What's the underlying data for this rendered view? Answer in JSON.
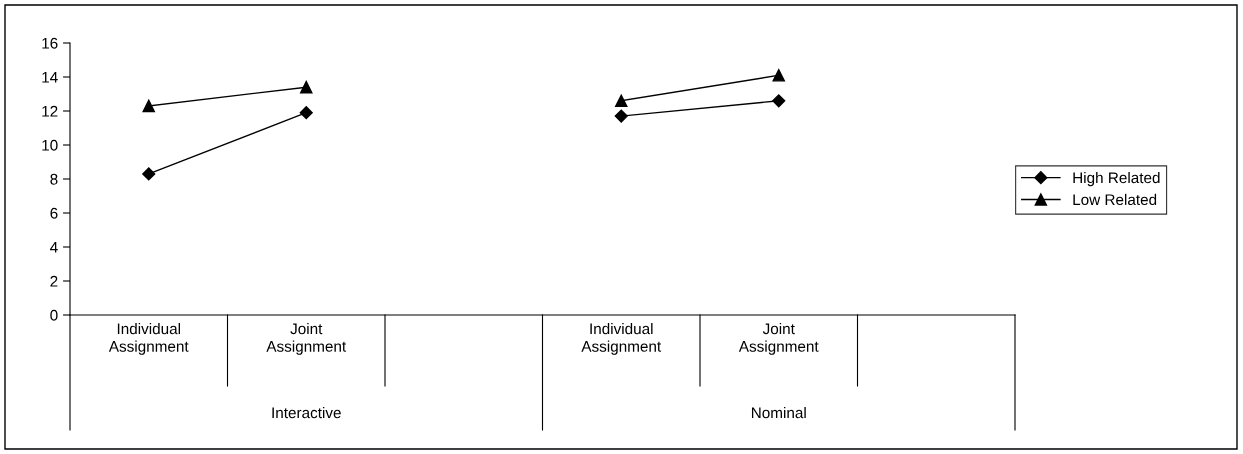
{
  "chart_data": {
    "type": "line",
    "categories": [
      "Individual Assignment",
      "Joint Assignment",
      null,
      "Individual Assignment",
      "Joint Assignment",
      null
    ],
    "annotations": [
      "Interactive",
      "Nominal"
    ],
    "series": [
      {
        "name": "High Related",
        "color": "#000000",
        "marker": "diamond",
        "values": [
          8.3,
          11.9,
          null,
          11.7,
          12.6,
          null
        ]
      },
      {
        "name": "Low Related",
        "color": "#000000",
        "marker": "triangle",
        "values": [
          12.3,
          13.4,
          null,
          12.6,
          14.1,
          null
        ]
      }
    ],
    "ylim": [
      0,
      16
    ],
    "yticks": [
      0,
      2,
      4,
      6,
      8,
      10,
      12,
      14,
      16
    ],
    "grid": false,
    "legend": "right",
    "line_style": "solid"
  }
}
